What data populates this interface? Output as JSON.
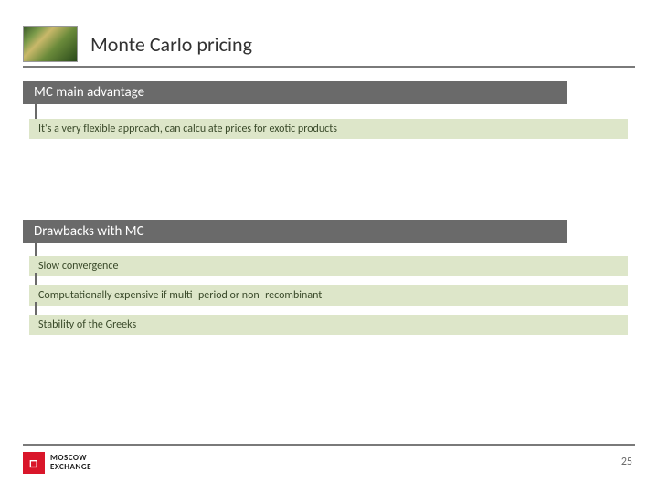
{
  "title": "Monte Carlo pricing",
  "section1": {
    "header": "MC main advantage",
    "items": [
      "It's a very flexible approach, can calculate prices for exotic products"
    ]
  },
  "section2": {
    "header": "Drawbacks with MC",
    "items": [
      "Slow convergence",
      "Computationally expensive if multi -period or non- recombinant",
      "Stability of the Greeks"
    ]
  },
  "footer": {
    "logo_top": "MOSCOW",
    "logo_bottom": "EXCHANGE",
    "page_number": "25"
  },
  "colors": {
    "header_bar": "#6a6a6a",
    "item_bar": "#dde6c9",
    "item_text": "#3a4a2a",
    "rule": "#7a7a7a",
    "logo_bg": "#d9162a"
  }
}
